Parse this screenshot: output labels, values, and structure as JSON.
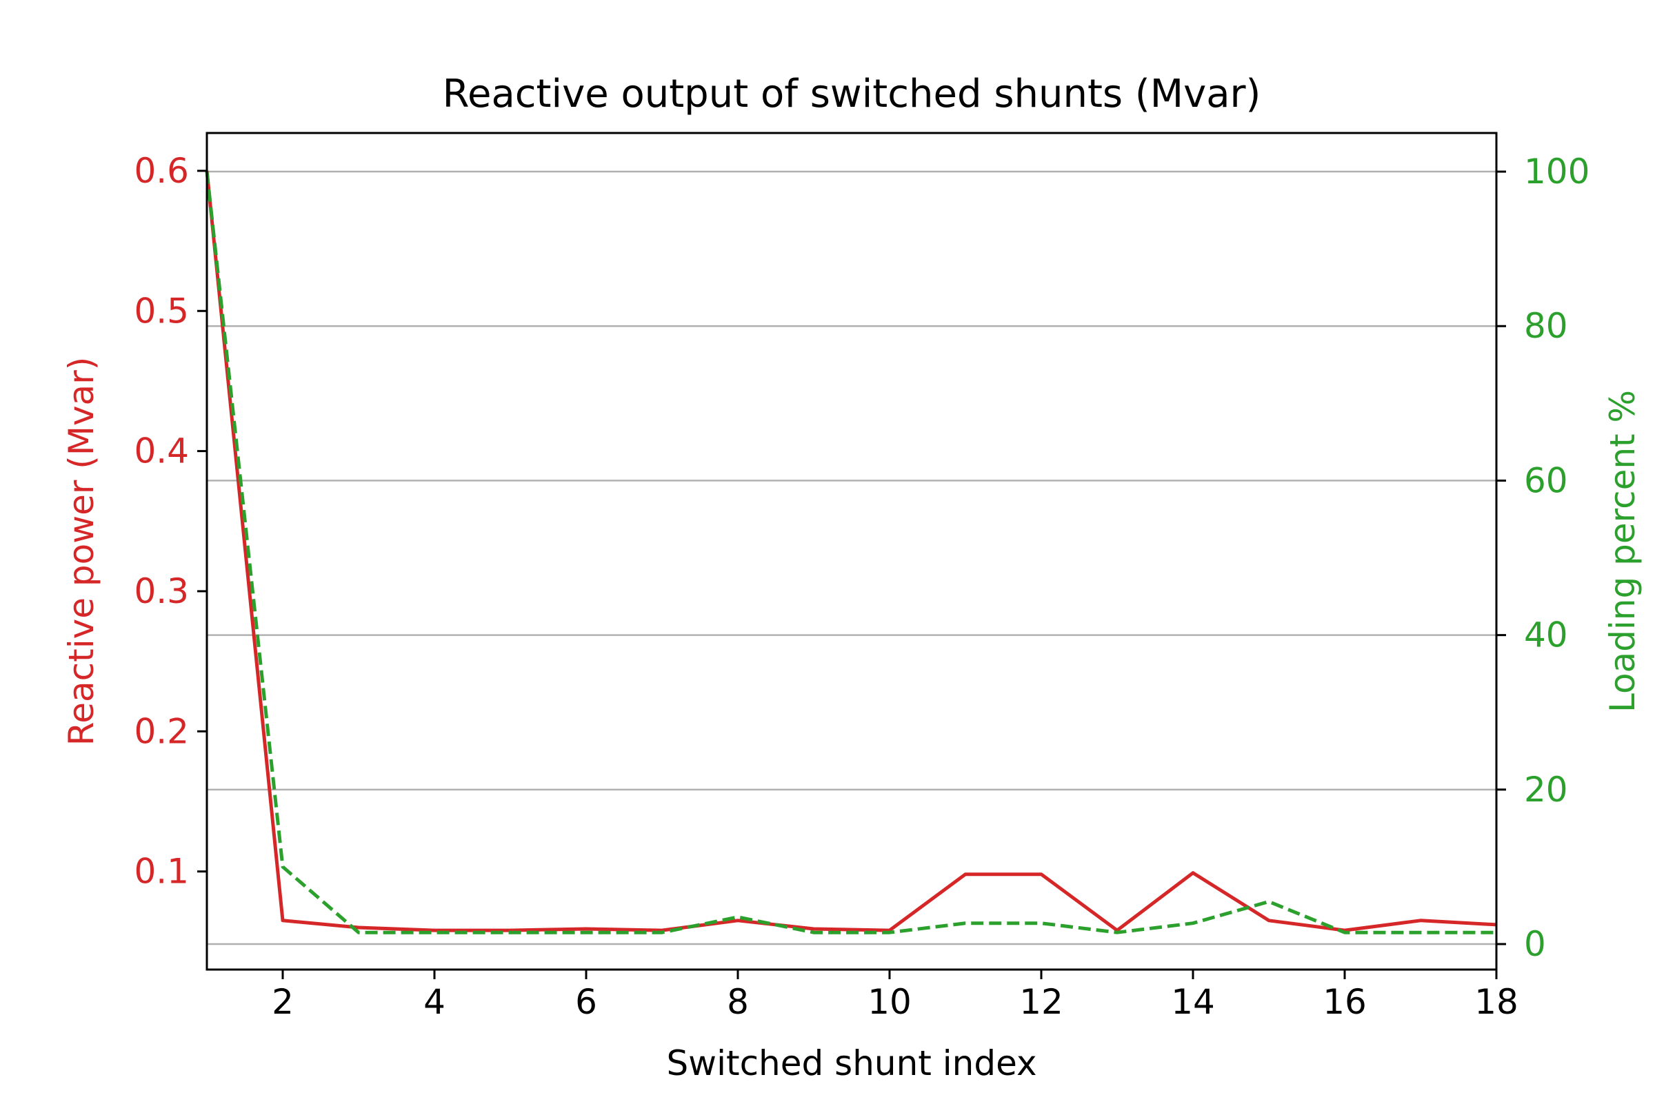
{
  "chart_data": {
    "type": "line",
    "title": "Reactive output of switched shunts (Mvar)",
    "xlabel": "Switched shunt index",
    "ylabel_left": "Reactive power (Mvar)",
    "ylabel_right": "Loading percent %",
    "xlim": [
      1,
      18
    ],
    "ylim_left": [
      0.03,
      0.627
    ],
    "ylim_right": [
      -3.3,
      105
    ],
    "x_ticks": [
      2,
      4,
      6,
      8,
      10,
      12,
      14,
      16,
      18
    ],
    "y_left_ticks": [
      0.1,
      0.2,
      0.3,
      0.4,
      0.5,
      0.6
    ],
    "y_right_ticks": [
      0,
      20,
      40,
      60,
      80,
      100
    ],
    "grid": "horizontal (right axis)",
    "x": [
      1,
      2,
      3,
      4,
      5,
      6,
      7,
      8,
      9,
      10,
      11,
      12,
      13,
      14,
      15,
      16,
      17,
      18
    ],
    "series": [
      {
        "name": "Reactive power (Mvar)",
        "axis": "left",
        "style": "solid",
        "color": "#d62728",
        "values": [
          0.6,
          0.065,
          0.06,
          0.058,
          0.058,
          0.059,
          0.058,
          0.065,
          0.059,
          0.058,
          0.098,
          0.098,
          0.058,
          0.099,
          0.065,
          0.058,
          0.065,
          0.062
        ]
      },
      {
        "name": "Loading percent %",
        "axis": "right",
        "style": "dashed",
        "color": "#2ca02c",
        "values": [
          100,
          10,
          1.5,
          1.5,
          1.5,
          1.5,
          1.5,
          3.5,
          1.5,
          1.5,
          2.7,
          2.7,
          1.5,
          2.7,
          5.5,
          1.5,
          1.5,
          1.5
        ]
      }
    ]
  }
}
